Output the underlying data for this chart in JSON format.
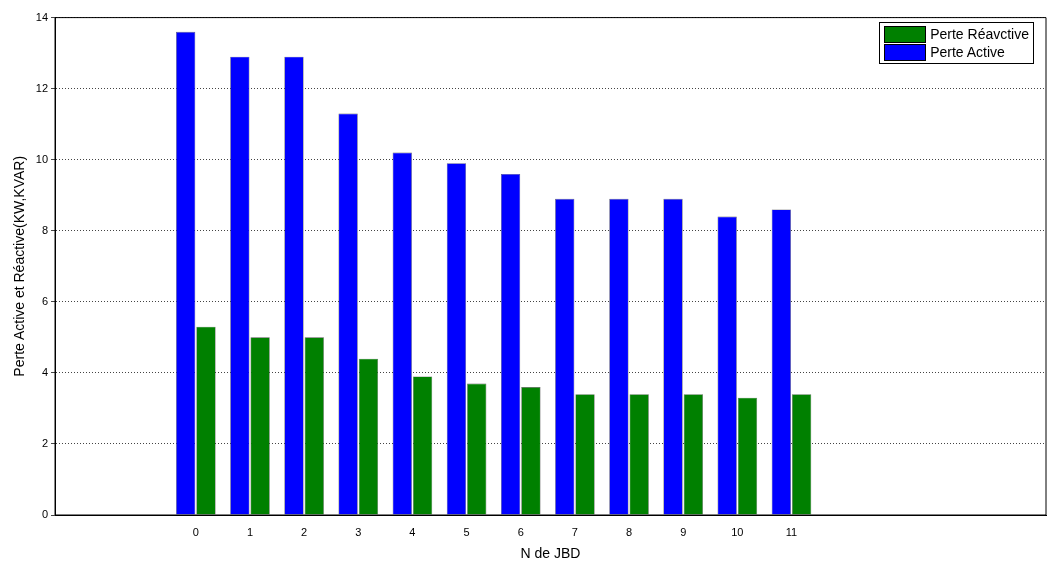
{
  "chart_data": {
    "type": "bar",
    "xlabel": "N de JBD",
    "ylabel": "Perte Active et Réactive(KW,KVAR)",
    "x": [
      0,
      1,
      2,
      3,
      4,
      5,
      6,
      7,
      8,
      9,
      10,
      11
    ],
    "xlim": [
      -2.6,
      15.7
    ],
    "xticks": [
      0,
      1,
      2,
      3,
      4,
      5,
      6,
      7,
      8,
      9,
      10,
      11
    ],
    "ylim": [
      0,
      14
    ],
    "yticks": [
      0,
      2,
      4,
      6,
      8,
      10,
      12,
      14
    ],
    "grid": "y",
    "legend": "top right",
    "series": [
      {
        "name": "Perte Active",
        "color": "#0000ff",
        "values": [
          13.6,
          12.9,
          12.9,
          11.3,
          10.2,
          9.9,
          9.6,
          8.9,
          8.9,
          8.9,
          8.4,
          8.6
        ]
      },
      {
        "name": "Perte Réavctive",
        "color": "#008000",
        "values": [
          5.3,
          5.0,
          5.0,
          4.4,
          3.9,
          3.7,
          3.6,
          3.4,
          3.4,
          3.4,
          3.3,
          3.4
        ]
      }
    ]
  }
}
